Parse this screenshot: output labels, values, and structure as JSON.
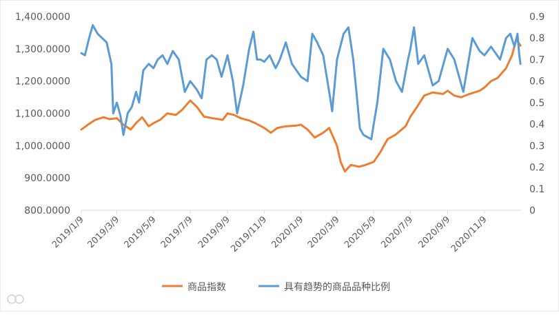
{
  "chart_data": {
    "type": "line",
    "x_tick_labels": [
      "2019/1/9",
      "2019/3/9",
      "2019/5/9",
      "2019/7/9",
      "2019/9/9",
      "2019/11/9",
      "2020/1/9",
      "2020/3/9",
      "2020/5/9",
      "2020/7/9",
      "2020/9/9",
      "2020/11/9"
    ],
    "y_left": {
      "ylim": [
        800,
        1400
      ],
      "ticks": [
        "800.0000",
        "900.0000",
        "1,000.0000",
        "1,100.0000",
        "1,200.0000",
        "1,300.0000",
        "1,400.0000"
      ]
    },
    "y_right": {
      "ylim": [
        0,
        0.9
      ],
      "ticks": [
        "0",
        "0.1",
        "0.2",
        "0.3",
        "0.4",
        "0.5",
        "0.6",
        "0.7",
        "0.8",
        "0.9"
      ]
    },
    "grid": false,
    "legend_position": "bottom",
    "series": [
      {
        "name": "商品指数",
        "axis": "left",
        "color": "#ED7D31",
        "points": [
          [
            "2019-01-09",
            1050
          ],
          [
            "2019-01-20",
            1065
          ],
          [
            "2019-02-01",
            1080
          ],
          [
            "2019-02-15",
            1088
          ],
          [
            "2019-02-25",
            1082
          ],
          [
            "2019-03-09",
            1085
          ],
          [
            "2019-03-20",
            1065
          ],
          [
            "2019-04-01",
            1050
          ],
          [
            "2019-04-10",
            1070
          ],
          [
            "2019-04-20",
            1088
          ],
          [
            "2019-05-01",
            1060
          ],
          [
            "2019-05-09",
            1070
          ],
          [
            "2019-05-20",
            1080
          ],
          [
            "2019-06-01",
            1100
          ],
          [
            "2019-06-15",
            1095
          ],
          [
            "2019-06-25",
            1110
          ],
          [
            "2019-07-09",
            1140
          ],
          [
            "2019-07-20",
            1120
          ],
          [
            "2019-08-01",
            1090
          ],
          [
            "2019-08-15",
            1085
          ],
          [
            "2019-09-01",
            1080
          ],
          [
            "2019-09-09",
            1100
          ],
          [
            "2019-09-20",
            1095
          ],
          [
            "2019-10-01",
            1085
          ],
          [
            "2019-10-15",
            1078
          ],
          [
            "2019-10-25",
            1070
          ],
          [
            "2019-11-09",
            1055
          ],
          [
            "2019-11-20",
            1040
          ],
          [
            "2019-12-01",
            1055
          ],
          [
            "2019-12-15",
            1060
          ],
          [
            "2020-01-01",
            1062
          ],
          [
            "2020-01-09",
            1065
          ],
          [
            "2020-01-20",
            1050
          ],
          [
            "2020-02-01",
            1025
          ],
          [
            "2020-02-15",
            1040
          ],
          [
            "2020-02-25",
            1055
          ],
          [
            "2020-03-09",
            1000
          ],
          [
            "2020-03-15",
            950
          ],
          [
            "2020-03-22",
            920
          ],
          [
            "2020-04-01",
            940
          ],
          [
            "2020-04-15",
            935
          ],
          [
            "2020-04-25",
            940
          ],
          [
            "2020-05-09",
            950
          ],
          [
            "2020-05-20",
            980
          ],
          [
            "2020-06-01",
            1020
          ],
          [
            "2020-06-15",
            1035
          ],
          [
            "2020-07-01",
            1060
          ],
          [
            "2020-07-09",
            1090
          ],
          [
            "2020-07-20",
            1120
          ],
          [
            "2020-08-01",
            1155
          ],
          [
            "2020-08-15",
            1165
          ],
          [
            "2020-09-01",
            1160
          ],
          [
            "2020-09-09",
            1170
          ],
          [
            "2020-09-20",
            1155
          ],
          [
            "2020-10-01",
            1150
          ],
          [
            "2020-10-15",
            1160
          ],
          [
            "2020-11-01",
            1170
          ],
          [
            "2020-11-09",
            1180
          ],
          [
            "2020-11-20",
            1200
          ],
          [
            "2020-12-01",
            1210
          ],
          [
            "2020-12-15",
            1240
          ],
          [
            "2020-12-25",
            1280
          ],
          [
            "2021-01-01",
            1330
          ],
          [
            "2021-01-08",
            1310
          ]
        ]
      },
      {
        "name": "具有趋势的商品品种比例",
        "axis": "right",
        "color": "#5B9BD5",
        "points": [
          [
            "2019-01-09",
            0.73
          ],
          [
            "2019-01-15",
            0.72
          ],
          [
            "2019-01-22",
            0.8
          ],
          [
            "2019-01-28",
            0.86
          ],
          [
            "2019-02-05",
            0.82
          ],
          [
            "2019-02-20",
            0.78
          ],
          [
            "2019-02-28",
            0.68
          ],
          [
            "2019-03-03",
            0.45
          ],
          [
            "2019-03-09",
            0.5
          ],
          [
            "2019-03-15",
            0.44
          ],
          [
            "2019-03-20",
            0.35
          ],
          [
            "2019-03-27",
            0.45
          ],
          [
            "2019-04-03",
            0.48
          ],
          [
            "2019-04-10",
            0.55
          ],
          [
            "2019-04-15",
            0.5
          ],
          [
            "2019-04-22",
            0.65
          ],
          [
            "2019-05-01",
            0.68
          ],
          [
            "2019-05-09",
            0.66
          ],
          [
            "2019-05-16",
            0.7
          ],
          [
            "2019-05-24",
            0.72
          ],
          [
            "2019-06-01",
            0.68
          ],
          [
            "2019-06-10",
            0.74
          ],
          [
            "2019-06-20",
            0.7
          ],
          [
            "2019-06-30",
            0.55
          ],
          [
            "2019-07-09",
            0.6
          ],
          [
            "2019-07-20",
            0.56
          ],
          [
            "2019-07-28",
            0.52
          ],
          [
            "2019-08-05",
            0.7
          ],
          [
            "2019-08-14",
            0.72
          ],
          [
            "2019-08-22",
            0.7
          ],
          [
            "2019-08-30",
            0.62
          ],
          [
            "2019-09-09",
            0.72
          ],
          [
            "2019-09-18",
            0.6
          ],
          [
            "2019-09-25",
            0.45
          ],
          [
            "2019-10-05",
            0.58
          ],
          [
            "2019-10-15",
            0.75
          ],
          [
            "2019-10-22",
            0.83
          ],
          [
            "2019-10-28",
            0.7
          ],
          [
            "2019-11-03",
            0.7
          ],
          [
            "2019-11-09",
            0.69
          ],
          [
            "2019-11-18",
            0.72
          ],
          [
            "2019-11-28",
            0.66
          ],
          [
            "2019-12-05",
            0.7
          ],
          [
            "2019-12-15",
            0.78
          ],
          [
            "2019-12-25",
            0.68
          ],
          [
            "2020-01-09",
            0.62
          ],
          [
            "2020-01-20",
            0.6
          ],
          [
            "2020-01-28",
            0.82
          ],
          [
            "2020-02-05",
            0.78
          ],
          [
            "2020-02-15",
            0.72
          ],
          [
            "2020-02-25",
            0.55
          ],
          [
            "2020-03-01",
            0.46
          ],
          [
            "2020-03-09",
            0.7
          ],
          [
            "2020-03-20",
            0.82
          ],
          [
            "2020-03-28",
            0.85
          ],
          [
            "2020-04-05",
            0.7
          ],
          [
            "2020-04-12",
            0.5
          ],
          [
            "2020-04-16",
            0.38
          ],
          [
            "2020-04-22",
            0.35
          ],
          [
            "2020-05-05",
            0.33
          ],
          [
            "2020-05-09",
            0.4
          ],
          [
            "2020-05-15",
            0.5
          ],
          [
            "2020-05-25",
            0.75
          ],
          [
            "2020-06-05",
            0.7
          ],
          [
            "2020-06-15",
            0.6
          ],
          [
            "2020-06-25",
            0.55
          ],
          [
            "2020-07-05",
            0.7
          ],
          [
            "2020-07-09",
            0.75
          ],
          [
            "2020-07-15",
            0.85
          ],
          [
            "2020-07-22",
            0.68
          ],
          [
            "2020-08-01",
            0.72
          ],
          [
            "2020-08-15",
            0.58
          ],
          [
            "2020-08-25",
            0.6
          ],
          [
            "2020-09-09",
            0.75
          ],
          [
            "2020-09-20",
            0.7
          ],
          [
            "2020-10-05",
            0.55
          ],
          [
            "2020-10-20",
            0.8
          ],
          [
            "2020-11-01",
            0.74
          ],
          [
            "2020-11-09",
            0.72
          ],
          [
            "2020-11-20",
            0.76
          ],
          [
            "2020-12-05",
            0.7
          ],
          [
            "2020-12-15",
            0.8
          ],
          [
            "2020-12-22",
            0.82
          ],
          [
            "2020-12-29",
            0.76
          ],
          [
            "2021-01-03",
            0.82
          ],
          [
            "2021-01-06",
            0.72
          ],
          [
            "2021-01-08",
            0.68
          ]
        ]
      }
    ]
  }
}
